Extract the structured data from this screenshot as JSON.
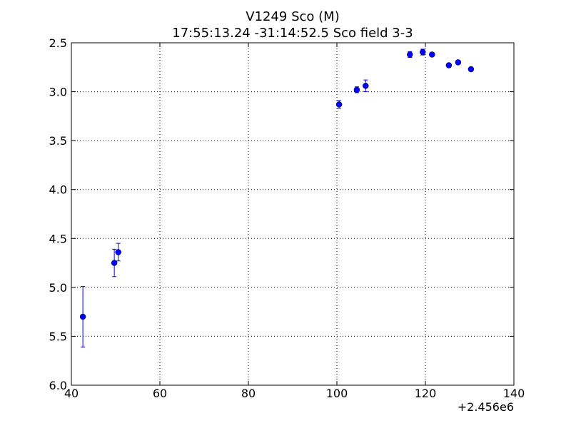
{
  "chart_data": {
    "type": "scatter",
    "title": "V1249 Sco  (M)",
    "subtitle": "17:55:13.24 -31:14:52.5 Sco field 3-3",
    "x_offset_label": "+2.456e6",
    "series": [
      {
        "color": "#0000ff",
        "x": [
          42.6,
          49.7,
          50.6,
          100.5,
          104.5,
          106.5,
          116.5,
          119.4,
          121.5,
          125.3,
          127.4,
          130.3
        ],
        "values": [
          5.3,
          4.75,
          4.64,
          3.13,
          2.98,
          2.94,
          2.62,
          2.595,
          2.62,
          2.73,
          2.7,
          2.77
        ],
        "errors": [
          0.31,
          0.14,
          0.09,
          0.04,
          0.03,
          0.06,
          0.03,
          0.03,
          0.02,
          0.02,
          0.02,
          0.02
        ]
      }
    ],
    "xlim": [
      40,
      140
    ],
    "xticks": [
      40,
      60,
      80,
      100,
      120,
      140
    ],
    "ylim": [
      6,
      2.5
    ],
    "yticks": [
      2.5,
      {
        "value": 3,
        "label": "3.0"
      },
      3.5,
      {
        "value": 4,
        "label": "4.0"
      },
      4.5,
      {
        "value": 5,
        "label": "5.0"
      },
      5.5,
      {
        "value": 6,
        "label": "6.0"
      }
    ],
    "grid": true
  }
}
